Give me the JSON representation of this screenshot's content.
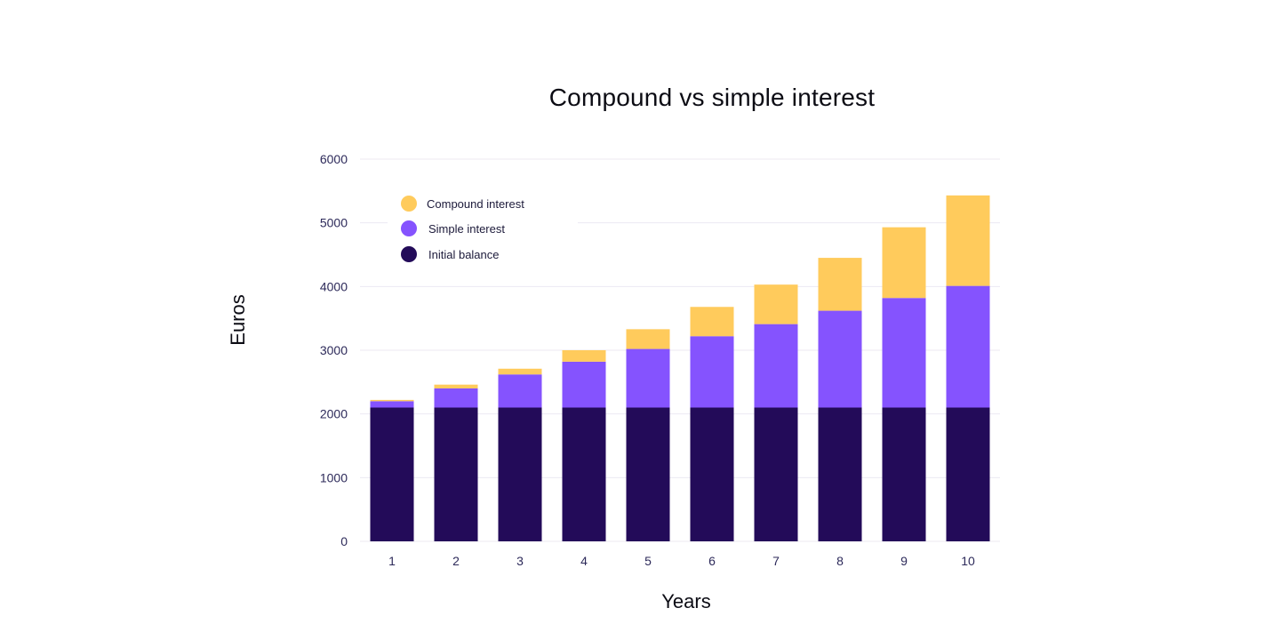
{
  "chart_data": {
    "type": "bar",
    "stacked": true,
    "title": "Compound vs simple interest",
    "xlabel": "Years",
    "ylabel": "Euros",
    "categories": [
      "1",
      "2",
      "3",
      "4",
      "5",
      "6",
      "7",
      "8",
      "9",
      "10"
    ],
    "ylim": [
      0,
      6000
    ],
    "yticks": [
      0,
      1000,
      2000,
      3000,
      4000,
      5000,
      6000
    ],
    "grid": true,
    "legend_position": "top-left",
    "series": [
      {
        "name": "Initial balance",
        "color": "#230b59",
        "values": [
          2100,
          2100,
          2100,
          2100,
          2100,
          2100,
          2100,
          2100,
          2100,
          2100
        ]
      },
      {
        "name": "Simple interest",
        "color": "#8553fe",
        "values": [
          100,
          300,
          520,
          720,
          920,
          1120,
          1310,
          1520,
          1720,
          1910
        ]
      },
      {
        "name": "Compound interest",
        "color": "#ffcb5c",
        "values": [
          20,
          60,
          90,
          180,
          310,
          460,
          620,
          830,
          1110,
          1420
        ]
      }
    ],
    "legend_order": [
      "Compound interest",
      "Simple interest",
      "Initial balance"
    ]
  }
}
